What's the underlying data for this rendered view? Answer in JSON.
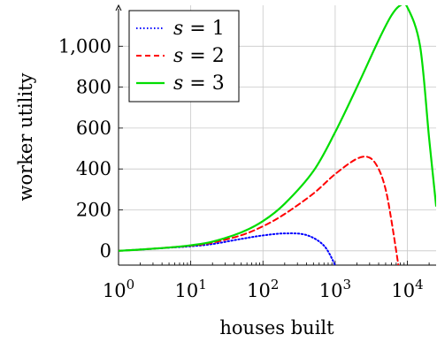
{
  "chart_data": {
    "type": "line",
    "title": "",
    "xlabel": "houses built",
    "ylabel": "worker utility",
    "x_scale": "log",
    "xlim": [
      1,
      25000
    ],
    "ylim": [
      -70,
      1200
    ],
    "x_ticks": [
      1,
      10,
      100,
      1000,
      10000
    ],
    "x_tick_labels": [
      {
        "base": "10",
        "exp": "0"
      },
      {
        "base": "10",
        "exp": "1"
      },
      {
        "base": "10",
        "exp": "2"
      },
      {
        "base": "10",
        "exp": "3"
      },
      {
        "base": "10",
        "exp": "4"
      }
    ],
    "y_ticks": [
      0,
      200,
      400,
      600,
      800,
      1000
    ],
    "y_tick_labels": [
      "0",
      "200",
      "400",
      "600",
      "800",
      "1,000"
    ],
    "grid": true,
    "legend_position": "top-left",
    "series": [
      {
        "name": "s = 1",
        "name_var": "s",
        "name_rest": " = 1",
        "color": "#0000ff",
        "style": "dotted",
        "x": [
          1,
          2,
          5,
          10,
          20,
          50,
          100,
          200,
          400,
          700,
          1000
        ],
        "y": [
          0,
          6,
          15,
          22,
          33,
          58,
          75,
          85,
          77,
          25,
          -70
        ]
      },
      {
        "name": "s = 2",
        "name_var": "s",
        "name_rest": " = 2",
        "color": "#ff0000",
        "style": "dashed",
        "x": [
          1,
          2,
          5,
          10,
          20,
          50,
          100,
          200,
          500,
          1000,
          2000,
          3000,
          4000,
          5000,
          6000,
          7500
        ],
        "y": [
          0,
          6,
          16,
          25,
          40,
          76,
          120,
          180,
          280,
          375,
          450,
          455,
          400,
          300,
          150,
          -70
        ]
      },
      {
        "name": "s = 3",
        "name_var": "s",
        "name_rest": " = 3",
        "color": "#00dd00",
        "style": "solid",
        "x": [
          1,
          2,
          5,
          10,
          20,
          50,
          100,
          200,
          500,
          1000,
          2000,
          4000,
          6000,
          8000,
          10000,
          15000,
          20000,
          25000
        ],
        "y": [
          0,
          6,
          16,
          27,
          45,
          90,
          145,
          230,
          390,
          580,
          800,
          1030,
          1150,
          1200,
          1190,
          1000,
          550,
          220
        ]
      }
    ]
  }
}
